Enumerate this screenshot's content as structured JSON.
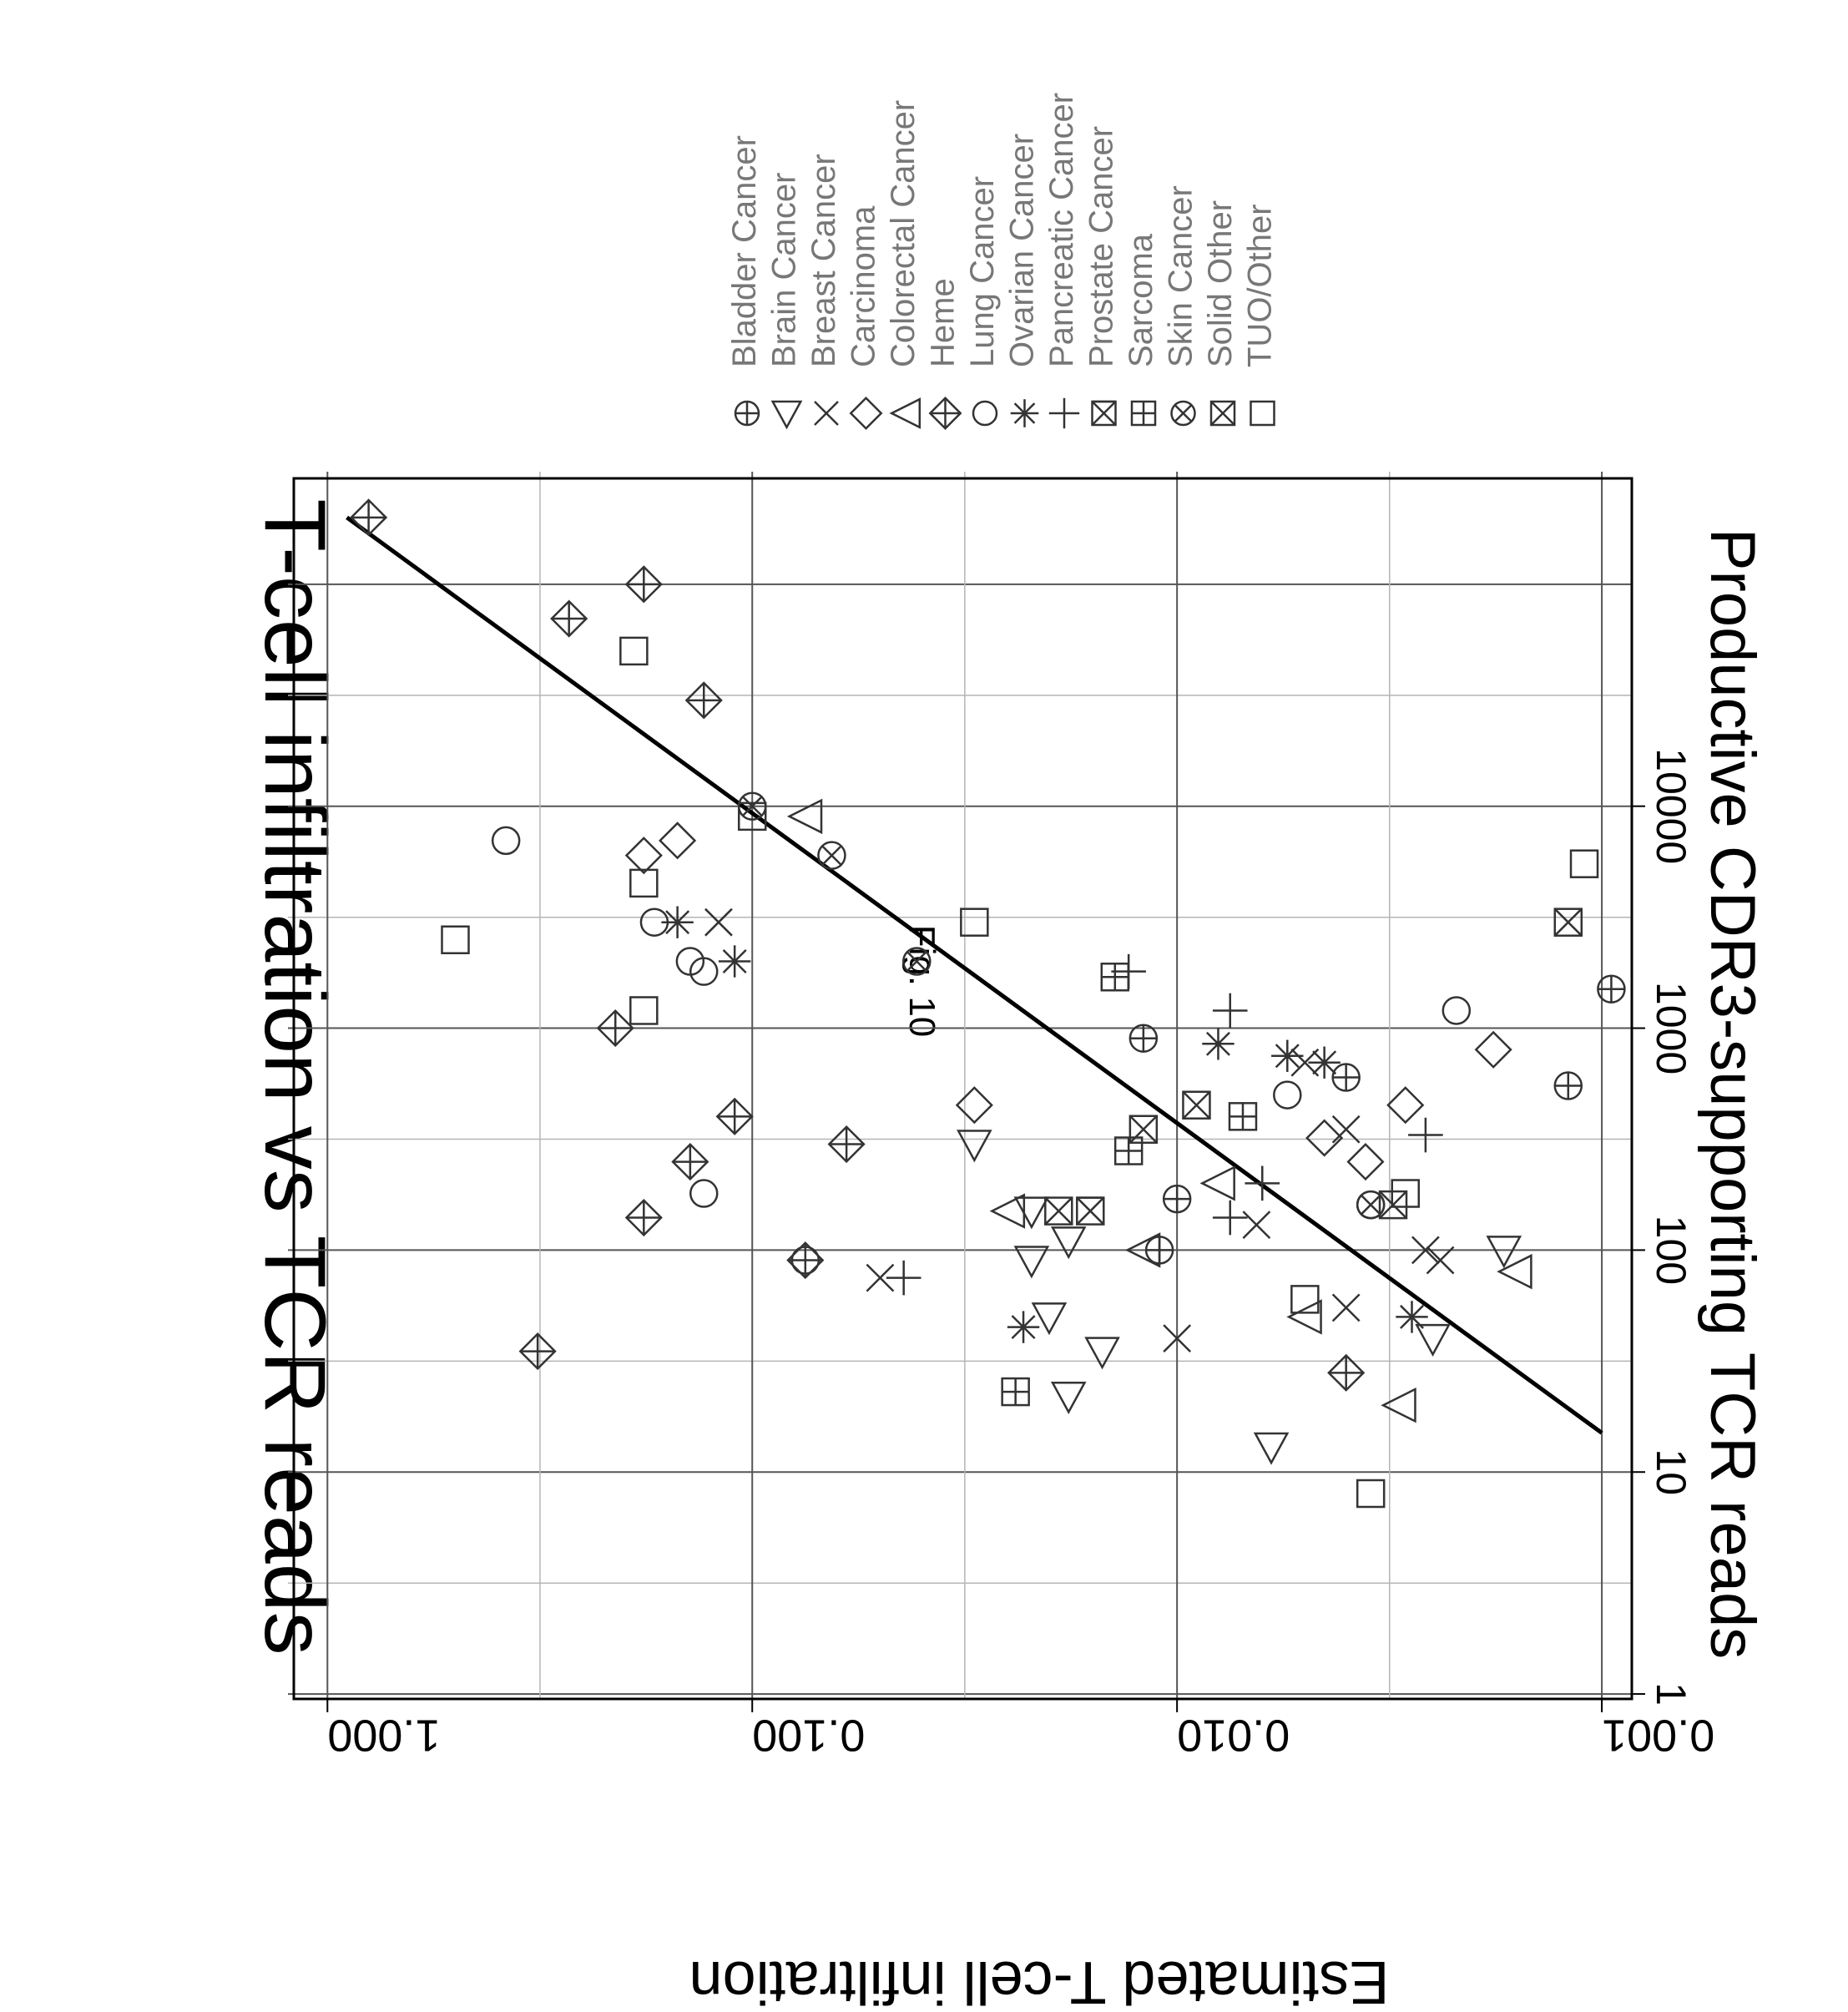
{
  "figure_label": "Fig. 10",
  "chart_data": {
    "type": "scatter",
    "orientation": "rotated-90-clockwise",
    "title": "T-cell infiltration vs TCR reads",
    "xlabel": "Productive CDR3-supporting TCR reads",
    "ylabel": "Estimated T-cell infiltration",
    "x_scale": "log10",
    "y_scale": "log10",
    "xlim": [
      0.95,
      300000
    ],
    "ylim": [
      0.00085,
      1.2
    ],
    "x_ticks": [
      1,
      10,
      100,
      1000,
      10000
    ],
    "x_tick_labels": [
      "1",
      "10",
      "100",
      "1000",
      "10000"
    ],
    "y_ticks": [
      1.0,
      0.1,
      0.01,
      0.001
    ],
    "y_tick_labels": [
      "1.000",
      "0.100",
      "0.010",
      "0.001"
    ],
    "grid": true,
    "legend_position": "right",
    "series": [
      {
        "name": "Bladder Cancer",
        "marker": "circle-plus",
        "points": [
          [
            100,
            0.011
          ],
          [
            170,
            0.01
          ],
          [
            600,
            0.004
          ],
          [
            1500,
            0.00095
          ],
          [
            900,
            0.012
          ],
          [
            550,
            0.0012
          ]
        ]
      },
      {
        "name": "Brain Cancer",
        "marker": "triangle-down",
        "points": [
          [
            13,
            0.006
          ],
          [
            22,
            0.018
          ],
          [
            35,
            0.015
          ],
          [
            50,
            0.02
          ],
          [
            90,
            0.022
          ],
          [
            110,
            0.018
          ],
          [
            150,
            0.022
          ],
          [
            300,
            0.03
          ],
          [
            40,
            0.0025
          ],
          [
            100,
            0.0017
          ]
        ]
      },
      {
        "name": "Breast Cancer",
        "marker": "x",
        "points": [
          [
            75,
            0.05
          ],
          [
            100,
            0.0026
          ],
          [
            90,
            0.0024
          ],
          [
            55,
            0.004
          ],
          [
            130,
            0.0065
          ],
          [
            350,
            0.004
          ],
          [
            700,
            0.005
          ],
          [
            3000,
            0.12
          ],
          [
            40,
            0.01
          ]
        ]
      },
      {
        "name": "Carcinoma",
        "marker": "diamond",
        "points": [
          [
            6000,
            0.18
          ],
          [
            7000,
            0.15
          ],
          [
            450,
            0.0029
          ],
          [
            250,
            0.0036
          ],
          [
            800,
            0.0018
          ],
          [
            320,
            0.0045
          ],
          [
            450,
            0.03
          ]
        ]
      },
      {
        "name": "Colorectal Cancer",
        "marker": "triangle-left",
        "points": [
          [
            50,
            0.005
          ],
          [
            100,
            0.012
          ],
          [
            150,
            0.025
          ],
          [
            200,
            0.008
          ],
          [
            80,
            0.0016
          ],
          [
            20,
            0.003
          ],
          [
            9000,
            0.075
          ]
        ]
      },
      {
        "name": "Heme",
        "marker": "diamond-plus",
        "points": [
          [
            200000,
            0.8
          ],
          [
            100000,
            0.18
          ],
          [
            70000,
            0.27
          ],
          [
            30000,
            0.13
          ],
          [
            1000,
            0.21
          ],
          [
            250,
            0.14
          ],
          [
            140,
            0.18
          ],
          [
            35,
            0.32
          ],
          [
            90,
            0.075
          ],
          [
            400,
            0.11
          ],
          [
            300,
            0.06
          ],
          [
            28,
            0.004
          ]
        ]
      },
      {
        "name": "Lung Cancer",
        "marker": "circle",
        "points": [
          [
            7000,
            0.38
          ],
          [
            3000,
            0.17
          ],
          [
            2000,
            0.14
          ],
          [
            180,
            0.13
          ],
          [
            90,
            0.075
          ],
          [
            1200,
            0.0022
          ],
          [
            500,
            0.0055
          ],
          [
            160,
            0.0035
          ],
          [
            1800,
            0.13
          ]
        ]
      },
      {
        "name": "Ovarian Cancer",
        "marker": "asterisk",
        "points": [
          [
            3000,
            0.15
          ],
          [
            2000,
            0.11
          ],
          [
            45,
            0.023
          ],
          [
            850,
            0.008
          ],
          [
            750,
            0.0055
          ],
          [
            700,
            0.0045
          ],
          [
            50,
            0.0028
          ]
        ]
      },
      {
        "name": "Pancreatic Cancer",
        "marker": "plus",
        "points": [
          [
            75,
            0.044
          ],
          [
            1200,
            0.0075
          ],
          [
            1800,
            0.013
          ],
          [
            330,
            0.0026
          ],
          [
            140,
            0.0075
          ],
          [
            200,
            0.0063
          ]
        ]
      },
      {
        "name": "Prostate Cancer",
        "marker": "hourglass-x",
        "points": [
          [
            150,
            0.016
          ],
          [
            450,
            0.009
          ],
          [
            350,
            0.012
          ]
        ]
      },
      {
        "name": "Sarcoma",
        "marker": "square-plus",
        "points": [
          [
            1700,
            0.014
          ],
          [
            23,
            0.024
          ],
          [
            400,
            0.007
          ],
          [
            280,
            0.013
          ]
        ]
      },
      {
        "name": "Skin Cancer",
        "marker": "circle-x",
        "points": [
          [
            10000,
            0.1
          ],
          [
            6000,
            0.065
          ],
          [
            2000,
            0.041
          ],
          [
            160,
            0.0035
          ]
        ]
      },
      {
        "name": "Solid Other",
        "marker": "square-x",
        "points": [
          [
            150,
            0.019
          ],
          [
            160,
            0.0031
          ],
          [
            3000,
            0.0012
          ]
        ]
      },
      {
        "name": "TUO/Other",
        "marker": "square",
        "points": [
          [
            50000,
            0.19
          ],
          [
            4500,
            0.18
          ],
          [
            2500,
            0.5
          ],
          [
            1200,
            0.18
          ],
          [
            60,
            0.005
          ],
          [
            8,
            0.0035
          ],
          [
            180,
            0.0029
          ],
          [
            9000,
            0.1
          ],
          [
            3000,
            0.03
          ],
          [
            5500,
            0.0011
          ]
        ]
      }
    ],
    "fit_line": {
      "from": [
        15,
        0.001
      ],
      "to": [
        200000,
        0.9
      ]
    }
  }
}
